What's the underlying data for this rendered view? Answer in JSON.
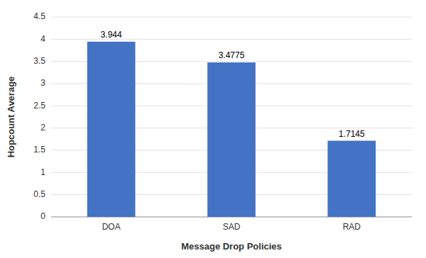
{
  "chart_data": {
    "type": "bar",
    "categories": [
      "DOA",
      "SAD",
      "RAD"
    ],
    "values": [
      3.944,
      3.4775,
      1.7145
    ],
    "color": "#4472c4",
    "xlabel": "Message Drop Policies",
    "ylabel": "Hopcount Average",
    "ylim": [
      0,
      4.5
    ],
    "yticks": [
      0,
      0.5,
      1,
      1.5,
      2,
      2.5,
      3,
      3.5,
      4,
      4.5
    ],
    "grid": true,
    "data_labels": true
  }
}
